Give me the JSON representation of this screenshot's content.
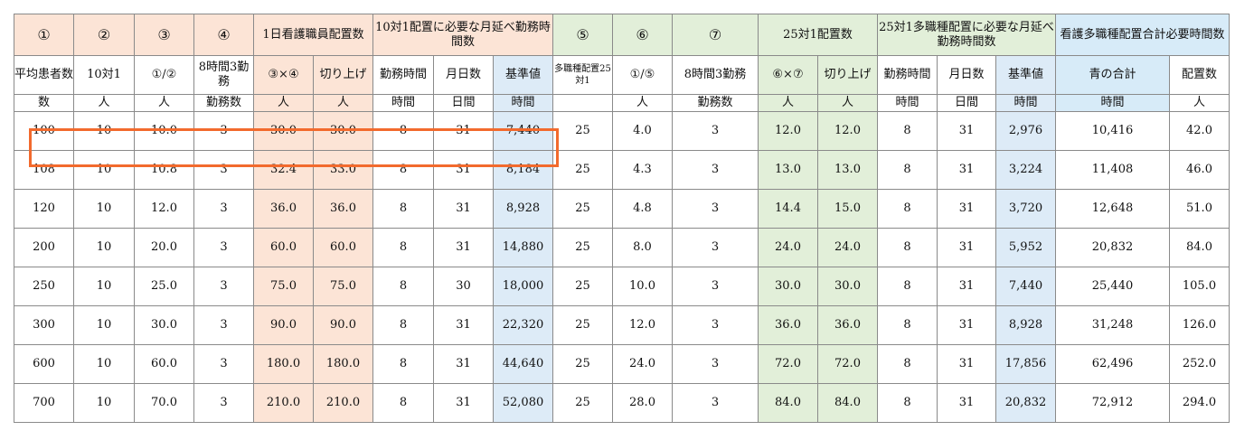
{
  "colors": {
    "pink": "#fce4d6",
    "green": "#e2efd9",
    "blue": "#ddebf7",
    "highlight": "#f26a2d"
  },
  "header_row1": {
    "c1": "①",
    "c2": "②",
    "c3": "③",
    "c4": "④",
    "daily_nurse": "1日看護職員配置数",
    "monthly_hours_10": "10対1配置に必要な月延べ勤務時間数",
    "c5": "⑤",
    "c6": "⑥",
    "c7": "⑦",
    "placement_25": "25対1配置数",
    "monthly_hours_25": "25対1多職種配置に必要な月延べ勤務時間数",
    "total_hours": "看護多職種配置合計必要時間数"
  },
  "header_row2": [
    "平均患者数",
    "10対1",
    "①/②",
    "8時間3勤務",
    "③×④",
    "切り上げ",
    "勤務時間",
    "月日数",
    "基準値",
    "多職種配置25対1",
    "①/⑤",
    "8時間3勤務",
    "⑥×⑦",
    "切り上げ",
    "勤務時間",
    "月日数",
    "基準値",
    "青の合計",
    "配置数"
  ],
  "header_row3": [
    "数",
    "人",
    "人",
    "勤務数",
    "人",
    "人",
    "時間",
    "日間",
    "時間",
    "",
    "人",
    "勤務数",
    "人",
    "人",
    "時間",
    "日間",
    "時間",
    "時間",
    "人"
  ],
  "rows": [
    [
      "100",
      "10",
      "10.0",
      "3",
      "30.0",
      "30.0",
      "8",
      "31",
      "7,440",
      "25",
      "4.0",
      "3",
      "12.0",
      "12.0",
      "8",
      "31",
      "2,976",
      "10,416",
      "42.0"
    ],
    [
      "108",
      "10",
      "10.8",
      "3",
      "32.4",
      "33.0",
      "8",
      "31",
      "8,184",
      "25",
      "4.3",
      "3",
      "13.0",
      "13.0",
      "8",
      "31",
      "3,224",
      "11,408",
      "46.0"
    ],
    [
      "120",
      "10",
      "12.0",
      "3",
      "36.0",
      "36.0",
      "8",
      "31",
      "8,928",
      "25",
      "4.8",
      "3",
      "14.4",
      "15.0",
      "8",
      "31",
      "3,720",
      "12,648",
      "51.0"
    ],
    [
      "200",
      "10",
      "20.0",
      "3",
      "60.0",
      "60.0",
      "8",
      "31",
      "14,880",
      "25",
      "8.0",
      "3",
      "24.0",
      "24.0",
      "8",
      "31",
      "5,952",
      "20,832",
      "84.0"
    ],
    [
      "250",
      "10",
      "25.0",
      "3",
      "75.0",
      "75.0",
      "8",
      "30",
      "18,000",
      "25",
      "10.0",
      "3",
      "30.0",
      "30.0",
      "8",
      "31",
      "7,440",
      "25,440",
      "105.0"
    ],
    [
      "300",
      "10",
      "30.0",
      "3",
      "90.0",
      "90.0",
      "8",
      "31",
      "22,320",
      "25",
      "12.0",
      "3",
      "36.0",
      "36.0",
      "8",
      "31",
      "8,928",
      "31,248",
      "126.0"
    ],
    [
      "600",
      "10",
      "60.0",
      "3",
      "180.0",
      "180.0",
      "8",
      "31",
      "44,640",
      "25",
      "24.0",
      "3",
      "72.0",
      "72.0",
      "8",
      "31",
      "17,856",
      "62,496",
      "252.0"
    ],
    [
      "700",
      "10",
      "70.0",
      "3",
      "210.0",
      "210.0",
      "8",
      "31",
      "52,080",
      "25",
      "28.0",
      "3",
      "84.0",
      "84.0",
      "8",
      "31",
      "20,832",
      "72,912",
      "294.0"
    ]
  ]
}
